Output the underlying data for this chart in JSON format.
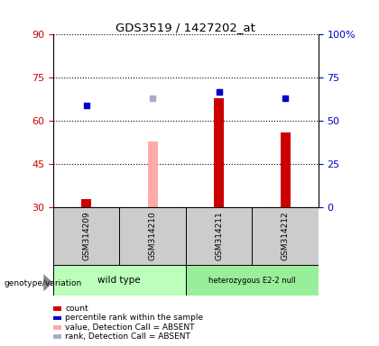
{
  "title": "GDS3519 / 1427202_at",
  "samples": [
    "GSM314209",
    "GSM314210",
    "GSM314211",
    "GSM314212"
  ],
  "left_ylim": [
    30,
    90
  ],
  "left_yticks": [
    30,
    45,
    60,
    75,
    90
  ],
  "right_ylim": [
    0,
    100
  ],
  "right_yticks": [
    0,
    25,
    50,
    75,
    100
  ],
  "bar_heights": [
    33,
    null,
    68,
    56
  ],
  "bar_absent_heights": [
    null,
    53,
    null,
    null
  ],
  "dot_values": [
    59,
    null,
    67,
    63
  ],
  "dot_absent_values": [
    null,
    63,
    67,
    null
  ],
  "bar_color": "#cc0000",
  "bar_absent_color": "#ffaaaa",
  "dot_color": "#0000cc",
  "dot_absent_color": "#aaaacc",
  "group1_name": "wild type",
  "group1_color": "#bbffbb",
  "group2_name": "heterozygous E2-2 null",
  "group2_color": "#99ee99",
  "sample_box_color": "#cccccc",
  "legend_items": [
    {
      "label": "count",
      "color": "#cc0000"
    },
    {
      "label": "percentile rank within the sample",
      "color": "#0000cc"
    },
    {
      "label": "value, Detection Call = ABSENT",
      "color": "#ffaaaa"
    },
    {
      "label": "rank, Detection Call = ABSENT",
      "color": "#aaaacc"
    }
  ],
  "genotype_label": "genotype/variation",
  "bar_width": 0.15
}
